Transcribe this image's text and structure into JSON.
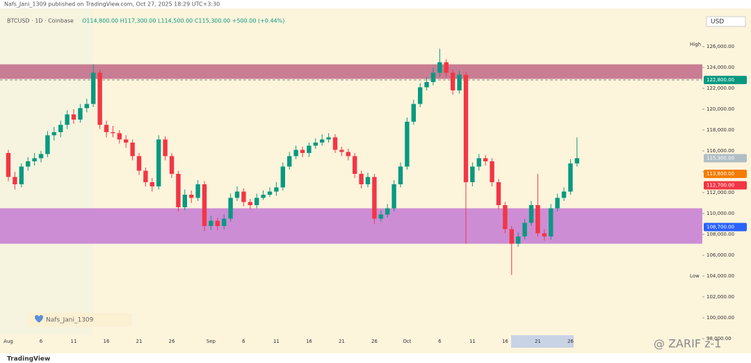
{
  "header": {
    "published": "Nafs_Jani_1309 published on TradingView.com, Oct 27, 2025 18:29 UTC+3:30",
    "currency": "USD",
    "high_label": "High",
    "low_label": "Low",
    "badge": "Nafs_Jani_1309",
    "watermark": "@ ZARIF z-1",
    "brand": "TradingView"
  },
  "chart_data": {
    "type": "candlestick",
    "title": "BTCUSD · 1D · Coinbase",
    "subtitle": "O114,800.00 H117,300.00 L114,500.00 C115,300.00 +500.00 (+0.44%)",
    "up_color": "#089981",
    "down_color": "#f23645",
    "categories": [
      "Aug",
      null,
      null,
      null,
      null,
      "6",
      null,
      null,
      null,
      null,
      "11",
      null,
      null,
      null,
      null,
      "16",
      null,
      null,
      null,
      null,
      "21",
      null,
      null,
      null,
      null,
      "26",
      null,
      null,
      null,
      null,
      null,
      "Sep",
      null,
      null,
      null,
      null,
      "6",
      null,
      null,
      null,
      null,
      "11",
      null,
      null,
      null,
      null,
      "16",
      null,
      null,
      null,
      null,
      "21",
      null,
      null,
      null,
      null,
      "26",
      null,
      null,
      null,
      null,
      "Oct",
      null,
      null,
      null,
      null,
      "6",
      null,
      null,
      null,
      null,
      "11",
      null,
      null,
      null,
      null,
      "16",
      null,
      null,
      null,
      null,
      "21",
      null,
      null,
      null,
      null,
      "26",
      null
    ],
    "ohlc": [
      [
        115800,
        116100,
        113100,
        113500
      ],
      [
        113500,
        114000,
        112300,
        112800
      ],
      [
        112800,
        114800,
        112500,
        114500
      ],
      [
        114500,
        115400,
        114100,
        115000
      ],
      [
        115000,
        115800,
        114600,
        115300
      ],
      [
        115300,
        116000,
        114900,
        115700
      ],
      [
        115700,
        117900,
        115400,
        117500
      ],
      [
        117500,
        118300,
        117000,
        117800
      ],
      [
        117800,
        118900,
        117300,
        118500
      ],
      [
        118500,
        119900,
        118100,
        119500
      ],
      [
        119500,
        120000,
        118600,
        119000
      ],
      [
        119000,
        120500,
        118700,
        120100
      ],
      [
        120100,
        121000,
        119700,
        120500
      ],
      [
        120500,
        124300,
        120200,
        123500
      ],
      [
        123500,
        123800,
        118100,
        118500
      ],
      [
        118500,
        118900,
        117300,
        117800
      ],
      [
        117800,
        118400,
        117300,
        117700
      ],
      [
        117700,
        118000,
        116700,
        117100
      ],
      [
        117100,
        117500,
        116300,
        116800
      ],
      [
        116800,
        117100,
        115100,
        115500
      ],
      [
        115500,
        115800,
        113700,
        114100
      ],
      [
        114100,
        114400,
        112600,
        113000
      ],
      [
        113000,
        113400,
        112100,
        112600
      ],
      [
        112600,
        117500,
        112300,
        117100
      ],
      [
        117100,
        117400,
        115100,
        115500
      ],
      [
        115500,
        115800,
        113400,
        113800
      ],
      [
        113800,
        114100,
        110200,
        110600
      ],
      [
        110600,
        112300,
        110300,
        111800
      ],
      [
        111800,
        112200,
        111000,
        111500
      ],
      [
        111500,
        113200,
        111200,
        112800
      ],
      [
        112800,
        113100,
        108300,
        108800
      ],
      [
        108800,
        109800,
        108400,
        109300
      ],
      [
        109300,
        109600,
        108400,
        108800
      ],
      [
        108800,
        109900,
        108500,
        109500
      ],
      [
        109500,
        111900,
        109200,
        111500
      ],
      [
        111500,
        112600,
        111200,
        112100
      ],
      [
        112100,
        112400,
        110700,
        111100
      ],
      [
        111100,
        111400,
        110400,
        110800
      ],
      [
        110800,
        111900,
        110500,
        111500
      ],
      [
        111500,
        112200,
        111300,
        111800
      ],
      [
        111800,
        112500,
        111600,
        112100
      ],
      [
        112100,
        113000,
        111700,
        112500
      ],
      [
        112500,
        114900,
        112200,
        114500
      ],
      [
        114500,
        115900,
        114200,
        115500
      ],
      [
        115500,
        116500,
        115200,
        116100
      ],
      [
        116100,
        116400,
        115400,
        115800
      ],
      [
        115800,
        116800,
        115400,
        116500
      ],
      [
        116500,
        117200,
        116200,
        116800
      ],
      [
        116800,
        117600,
        116500,
        117100
      ],
      [
        117100,
        117700,
        116800,
        117300
      ],
      [
        117300,
        117600,
        115800,
        116100
      ],
      [
        116100,
        116400,
        115500,
        115900
      ],
      [
        115900,
        116200,
        115100,
        115500
      ],
      [
        115500,
        115800,
        113400,
        113800
      ],
      [
        113800,
        114100,
        112400,
        112800
      ],
      [
        112800,
        113900,
        112500,
        113500
      ],
      [
        113500,
        113800,
        109000,
        109500
      ],
      [
        109500,
        110300,
        109200,
        109900
      ],
      [
        109900,
        110900,
        109600,
        110500
      ],
      [
        110500,
        113200,
        110200,
        112800
      ],
      [
        112800,
        114900,
        112500,
        114500
      ],
      [
        114500,
        119200,
        114200,
        118800
      ],
      [
        118800,
        120900,
        118500,
        120500
      ],
      [
        120500,
        122500,
        120200,
        122100
      ],
      [
        122100,
        123100,
        121800,
        122600
      ],
      [
        122600,
        124000,
        122300,
        123500
      ],
      [
        123500,
        125800,
        123100,
        124500
      ],
      [
        124500,
        124800,
        123100,
        123500
      ],
      [
        123500,
        123800,
        121400,
        121800
      ],
      [
        121800,
        123700,
        121500,
        123300
      ],
      [
        123300,
        123600,
        107100,
        113000
      ],
      [
        113000,
        114900,
        112600,
        114500
      ],
      [
        114500,
        115700,
        114100,
        115300
      ],
      [
        115300,
        115600,
        114600,
        115000
      ],
      [
        115000,
        115300,
        112600,
        113000
      ],
      [
        113000,
        113300,
        110400,
        110800
      ],
      [
        110800,
        111100,
        108100,
        108500
      ],
      [
        108500,
        108800,
        104100,
        107100
      ],
      [
        107100,
        108200,
        106800,
        107800
      ],
      [
        107800,
        109500,
        107500,
        109100
      ],
      [
        109100,
        111200,
        108800,
        110800
      ],
      [
        110800,
        113800,
        107800,
        108100
      ],
      [
        108100,
        108500,
        107400,
        107800
      ],
      [
        107800,
        110900,
        107500,
        110500
      ],
      [
        110500,
        111900,
        110200,
        111500
      ],
      [
        111500,
        112500,
        111200,
        112100
      ],
      [
        112100,
        115200,
        111800,
        114800
      ],
      [
        114800,
        117300,
        114500,
        115300
      ]
    ],
    "zones": [
      {
        "from": 122900,
        "to": 124300,
        "color": "#c2708b"
      },
      {
        "from": 107100,
        "to": 110500,
        "color": "#c882d4"
      }
    ],
    "levels": [
      {
        "value": 122800,
        "color": "#8a8a8a"
      }
    ],
    "price_tags": [
      {
        "value": 122800,
        "label": "122,800.00",
        "color": "#089981"
      },
      {
        "value": 115300,
        "label": "115,300.00",
        "color": "#b0bec5"
      },
      {
        "value": 113800,
        "label": "113,800.00",
        "color": "#f57c00"
      },
      {
        "value": 112700,
        "label": "112,700.00",
        "color": "#f23645"
      },
      {
        "value": 108700,
        "label": "108,700.00",
        "color": "#2962ff"
      }
    ],
    "ylim": [
      98000,
      130000
    ],
    "yticks": [
      {
        "value": 98000,
        "label": "98,000.00"
      },
      {
        "value": 100000,
        "label": "100,000.00"
      },
      {
        "value": 102000,
        "label": "102,000.00"
      },
      {
        "value": 104000,
        "label": "104,000.00"
      },
      {
        "value": 106000,
        "label": "106,000.00"
      },
      {
        "value": 108000,
        "label": "108,000.00"
      },
      {
        "value": 110000,
        "label": "110,000.00"
      },
      {
        "value": 112000,
        "label": "112,000.00"
      },
      {
        "value": 114000,
        "label": "114,000.00"
      },
      {
        "value": 116000,
        "label": "116,000.00"
      },
      {
        "value": 118000,
        "label": "118,000.00"
      },
      {
        "value": 120000,
        "label": "120,000.00"
      },
      {
        "value": 122000,
        "label": "122,000.00"
      },
      {
        "value": 124000,
        "label": "124,000.00"
      },
      {
        "value": 126000,
        "label": "126,000.00"
      }
    ],
    "grid": false
  }
}
